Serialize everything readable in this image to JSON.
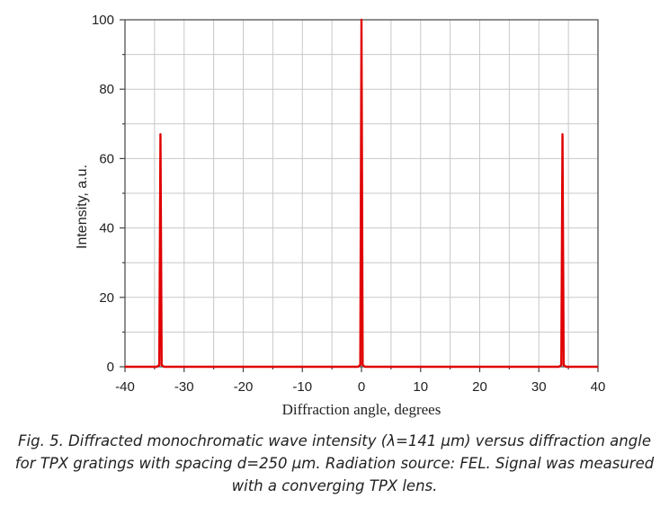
{
  "chart_data": {
    "type": "line",
    "xlabel": "Diffraction angle, degrees",
    "ylabel": "Intensity, a.u.",
    "xlim": [
      -40,
      40
    ],
    "ylim": [
      0,
      100
    ],
    "x_ticks": [
      -40,
      -30,
      -20,
      -10,
      0,
      10,
      20,
      30,
      40
    ],
    "y_ticks": [
      0,
      20,
      40,
      60,
      80,
      100
    ],
    "grid": true,
    "series": [
      {
        "color": "#e00000",
        "points": [
          [
            -40,
            0
          ],
          [
            -34.6,
            0
          ],
          [
            -34.2,
            0.5
          ],
          [
            -34.0,
            67
          ],
          [
            -33.8,
            0.5
          ],
          [
            -33.4,
            0
          ],
          [
            -0.6,
            0
          ],
          [
            -0.2,
            0.5
          ],
          [
            0,
            100
          ],
          [
            0.2,
            0.5
          ],
          [
            0.6,
            0
          ],
          [
            33.4,
            0
          ],
          [
            33.8,
            0.5
          ],
          [
            34.0,
            67
          ],
          [
            34.2,
            0.5
          ],
          [
            34.6,
            0
          ],
          [
            40,
            0
          ]
        ]
      }
    ]
  },
  "caption": {
    "lines": [
      "Fig. 5. Diffracted monochromatic wave intensity (λ=141 μm) versus diffraction angle",
      "for TPX gratings with spacing d=250 μm. Radiation source: FEL. Signal was measured",
      "with a converging TPX lens."
    ]
  }
}
